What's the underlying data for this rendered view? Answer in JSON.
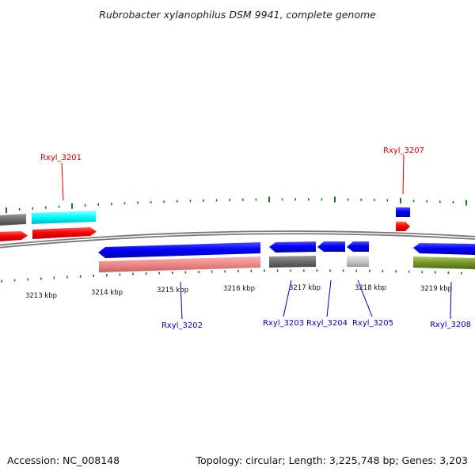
{
  "title": "Rubrobacter xylanophilus DSM 9941, complete genome",
  "footer": {
    "accession": "Accession: NC_008148",
    "summary": "Topology: circular; Length: 3,225,748 bp; Genes: 3,203"
  },
  "scale": {
    "labels": [
      "3213 kbp",
      "3214 kbp",
      "3215 kbp",
      "3216 kbp",
      "3217 kbp",
      "3218 kbp",
      "3219 kbp"
    ]
  },
  "genes": [
    {
      "label": "Rxyl_3201",
      "strand": "forward",
      "color": "#dd0000"
    },
    {
      "label": "Rxyl_3207",
      "strand": "forward",
      "color": "#dd0000"
    },
    {
      "label": "Rxyl_3202",
      "strand": "reverse",
      "color": "#0000cc"
    },
    {
      "label": "Rxyl_3203",
      "strand": "reverse",
      "color": "#0000cc"
    },
    {
      "label": "Rxyl_3204",
      "strand": "reverse",
      "color": "#0000cc"
    },
    {
      "label": "Rxyl_3205",
      "strand": "reverse",
      "color": "#0000cc"
    },
    {
      "label": "Rxyl_3208",
      "strand": "reverse",
      "color": "#0000cc"
    }
  ],
  "colors": {
    "backbone": "#888888",
    "tick": "#1a7a1a",
    "cds_forward": "#ff0000",
    "cds_reverse": "#0000ff"
  }
}
